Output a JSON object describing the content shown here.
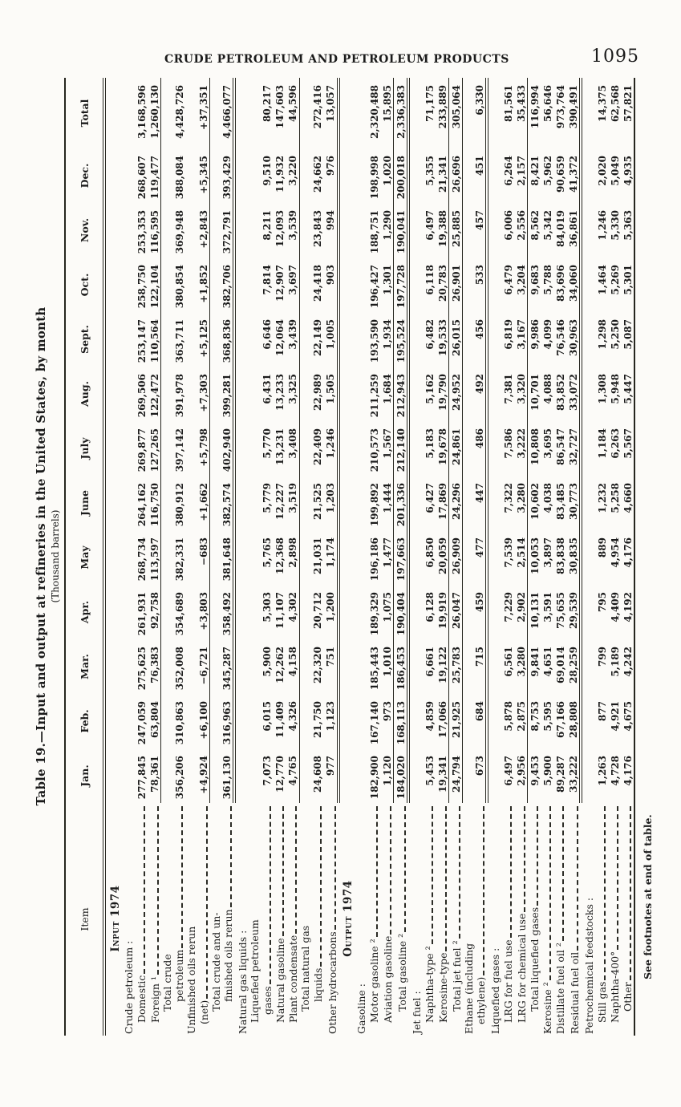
{
  "page": {
    "header": "CRUDE PETROLEUM AND PETROLEUM PRODUCTS",
    "page_number": "1095"
  },
  "table": {
    "title": "Table 19.—Input and output at refineries in the United States, by month",
    "subtitle": "(Thousand barrels)",
    "stub_header": "Item",
    "columns": [
      "Jan.",
      "Feb.",
      "Mar.",
      "Apr.",
      "May",
      "June",
      "July",
      "Aug.",
      "Sept.",
      "Oct.",
      "Nov.",
      "Dec.",
      "Total"
    ],
    "footnote": "See footnotes at end of table.",
    "rows": [
      {
        "type": "section",
        "label": "Input 1974"
      },
      {
        "type": "group",
        "label": "Crude petroleum :",
        "indent": 0
      },
      {
        "type": "data",
        "label": "Domestic",
        "indent": 1,
        "values": [
          "277,845",
          "247,059",
          "275,625",
          "261,931",
          "268,734",
          "264,162",
          "269,877",
          "269,506",
          "253,147",
          "258,750",
          "253,353",
          "268,607",
          "3,168,596"
        ]
      },
      {
        "type": "data",
        "label": "Foreign ¹",
        "indent": 1,
        "values": [
          "78,361",
          "63,804",
          "76,383",
          "92,758",
          "113,597",
          "116,750",
          "127,265",
          "122,472",
          "110,564",
          "122,104",
          "116,595",
          "119,477",
          "1,260,130"
        ]
      },
      {
        "type": "data",
        "label": "Total crude",
        "label2": "petroleum",
        "indent": 2,
        "rule_above": true,
        "values": [
          "356,206",
          "310,863",
          "352,008",
          "354,689",
          "382,331",
          "380,912",
          "397,142",
          "391,978",
          "363,711",
          "380,854",
          "369,948",
          "388,084",
          "4,428,726"
        ]
      },
      {
        "type": "data",
        "label": "Unfinished oils rerun",
        "label2": "(net)",
        "indent": 0,
        "values": [
          "+4,924",
          "+6,100",
          "−6,721",
          "+3,803",
          "−683",
          "+1,662",
          "+5,798",
          "+7,303",
          "+5,125",
          "+1,852",
          "+2,843",
          "+5,345",
          "+37,351"
        ]
      },
      {
        "type": "data",
        "label": "Total crude and un-",
        "label2": "finished oils rerun",
        "indent": 2,
        "rule_above": true,
        "rule_below": "double",
        "values": [
          "361,130",
          "316,963",
          "345,287",
          "358,492",
          "381,648",
          "382,574",
          "402,940",
          "399,281",
          "368,836",
          "382,706",
          "372,791",
          "393,429",
          "4,466,077"
        ]
      },
      {
        "type": "group",
        "label": "Natural gas liquids :",
        "indent": 0
      },
      {
        "type": "data",
        "label": "Liquefied petroleum",
        "label2": "gases",
        "indent": 1,
        "values": [
          "7,073",
          "6,015",
          "5,900",
          "5,303",
          "5,765",
          "5,779",
          "5,770",
          "6,431",
          "6,646",
          "7,814",
          "8,211",
          "9,510",
          "80,217"
        ]
      },
      {
        "type": "data",
        "label": "Natural gasoline",
        "indent": 1,
        "values": [
          "12,770",
          "11,409",
          "12,262",
          "11,107",
          "12,368",
          "12,227",
          "13,231",
          "13,233",
          "12,064",
          "12,907",
          "12,093",
          "11,932",
          "147,603"
        ]
      },
      {
        "type": "data",
        "label": "Plant condensate",
        "indent": 1,
        "values": [
          "4,765",
          "4,326",
          "4,158",
          "4,302",
          "2,898",
          "3,519",
          "3,408",
          "3,325",
          "3,439",
          "3,697",
          "3,539",
          "3,220",
          "44,596"
        ]
      },
      {
        "type": "data",
        "label": "Total natural gas",
        "label2": "liquids",
        "indent": 2,
        "rule_above": true,
        "values": [
          "24,608",
          "21,750",
          "22,320",
          "20,712",
          "21,031",
          "21,525",
          "22,409",
          "22,989",
          "22,149",
          "24,418",
          "23,843",
          "24,662",
          "272,416"
        ]
      },
      {
        "type": "data",
        "label": "Other hydrocarbons",
        "indent": 0,
        "rule_below": "double",
        "values": [
          "977",
          "1,123",
          "751",
          "1,200",
          "1,174",
          "1,203",
          "1,246",
          "1,505",
          "1,005",
          "903",
          "994",
          "976",
          "13,057"
        ]
      },
      {
        "type": "section",
        "label": "Output 1974"
      },
      {
        "type": "group",
        "label": "Gasoline :",
        "indent": 0
      },
      {
        "type": "data",
        "label": "Motor gasoline ²",
        "indent": 1,
        "values": [
          "182,900",
          "167,140",
          "185,443",
          "189,329",
          "196,186",
          "199,892",
          "210,573",
          "211,259",
          "193,590",
          "196,427",
          "188,751",
          "198,998",
          "2,320,488"
        ]
      },
      {
        "type": "data",
        "label": "Aviation gasoline",
        "indent": 1,
        "values": [
          "1,120",
          "973",
          "1,010",
          "1,075",
          "1,477",
          "1,444",
          "1,567",
          "1,684",
          "1,934",
          "1,301",
          "1,290",
          "1,020",
          "15,895"
        ]
      },
      {
        "type": "data",
        "label": "Total gasoline ²",
        "indent": 2,
        "rule_above": true,
        "rule_below": "double",
        "values": [
          "184,020",
          "168,113",
          "186,453",
          "190,404",
          "197,663",
          "201,336",
          "212,140",
          "212,943",
          "195,524",
          "197,728",
          "190,041",
          "200,018",
          "2,336,383"
        ]
      },
      {
        "type": "group",
        "label": "Jet fuel :",
        "indent": 0
      },
      {
        "type": "data",
        "label": "Naphtha-type ²",
        "indent": 1,
        "values": [
          "5,453",
          "4,859",
          "6,661",
          "6,128",
          "6,850",
          "6,427",
          "5,183",
          "5,162",
          "6,482",
          "6,118",
          "6,497",
          "5,355",
          "71,175"
        ]
      },
      {
        "type": "data",
        "label": "Kerosine-type",
        "indent": 1,
        "values": [
          "19,341",
          "17,066",
          "19,122",
          "19,919",
          "20,059",
          "17,869",
          "19,678",
          "19,790",
          "19,533",
          "20,783",
          "19,388",
          "21,341",
          "233,889"
        ]
      },
      {
        "type": "data",
        "label": "Total jet fuel ²",
        "indent": 2,
        "rule_above": true,
        "rule_below": "single",
        "values": [
          "24,794",
          "21,925",
          "25,783",
          "26,047",
          "26,909",
          "24,296",
          "24,861",
          "24,952",
          "26,015",
          "26,901",
          "25,885",
          "26,696",
          "305,064"
        ]
      },
      {
        "type": "data",
        "label": "Ethane (including",
        "label2": "ethylene)",
        "indent": 0,
        "rule_below": "double",
        "values": [
          "673",
          "684",
          "715",
          "459",
          "477",
          "447",
          "486",
          "492",
          "456",
          "533",
          "457",
          "451",
          "6,330"
        ]
      },
      {
        "type": "group",
        "label": "Liquefied gases :",
        "indent": 0
      },
      {
        "type": "data",
        "label": "LRG for fuel use",
        "indent": 1,
        "values": [
          "6,497",
          "5,878",
          "6,561",
          "7,229",
          "7,539",
          "7,322",
          "7,586",
          "7,381",
          "6,819",
          "6,479",
          "6,006",
          "6,264",
          "81,561"
        ]
      },
      {
        "type": "data",
        "label": "LRG for chemical use",
        "indent": 1,
        "values": [
          "2,956",
          "2,875",
          "3,280",
          "2,902",
          "2,514",
          "3,280",
          "3,222",
          "3,320",
          "3,167",
          "3,204",
          "2,556",
          "2,157",
          "35,433"
        ]
      },
      {
        "type": "data",
        "label": "Total liquefied gases",
        "indent": 2,
        "rule_above": true,
        "values": [
          "9,453",
          "8,753",
          "9,841",
          "10,131",
          "10,053",
          "10,602",
          "10,808",
          "10,701",
          "9,986",
          "9,683",
          "8,562",
          "8,421",
          "116,994"
        ]
      },
      {
        "type": "data",
        "label": "Kerosine ²",
        "indent": 0,
        "values": [
          "5,900",
          "5,595",
          "4,651",
          "3,591",
          "3,897",
          "4,038",
          "3,695",
          "4,088",
          "4,099",
          "5,788",
          "5,342",
          "5,962",
          "56,646"
        ]
      },
      {
        "type": "data",
        "label": "Distillate fuel oil ²",
        "indent": 0,
        "values": [
          "89,287",
          "67,166",
          "69,014",
          "75,655",
          "83,838",
          "83,485",
          "86,547",
          "83,852",
          "76,546",
          "83,696",
          "84,019",
          "90,659",
          "973,764"
        ]
      },
      {
        "type": "data",
        "label": "Residual fuel oil",
        "indent": 0,
        "rule_below": "double",
        "values": [
          "33,222",
          "28,808",
          "28,259",
          "29,539",
          "30,835",
          "30,773",
          "32,727",
          "33,072",
          "30,963",
          "34,060",
          "36,861",
          "41,372",
          "390,491"
        ]
      },
      {
        "type": "group",
        "label": "Petrochemical feedstocks :",
        "indent": 0
      },
      {
        "type": "data",
        "label": "Still gas",
        "indent": 1,
        "values": [
          "1,263",
          "877",
          "799",
          "795",
          "889",
          "1,232",
          "1,184",
          "1,308",
          "1,298",
          "1,464",
          "1,246",
          "2,020",
          "14,375"
        ]
      },
      {
        "type": "data",
        "label": "Naphtha-400°",
        "indent": 1,
        "values": [
          "4,728",
          "4,921",
          "5,189",
          "4,409",
          "4,954",
          "5,258",
          "6,263",
          "5,948",
          "5,250",
          "5,269",
          "5,330",
          "5,049",
          "62,568"
        ]
      },
      {
        "type": "data",
        "label": "Other",
        "indent": 2,
        "values": [
          "4,176",
          "4,675",
          "4,242",
          "4,192",
          "4,176",
          "4,660",
          "5,567",
          "5,447",
          "5,087",
          "5,301",
          "5,363",
          "4,935",
          "57,821"
        ]
      }
    ]
  }
}
